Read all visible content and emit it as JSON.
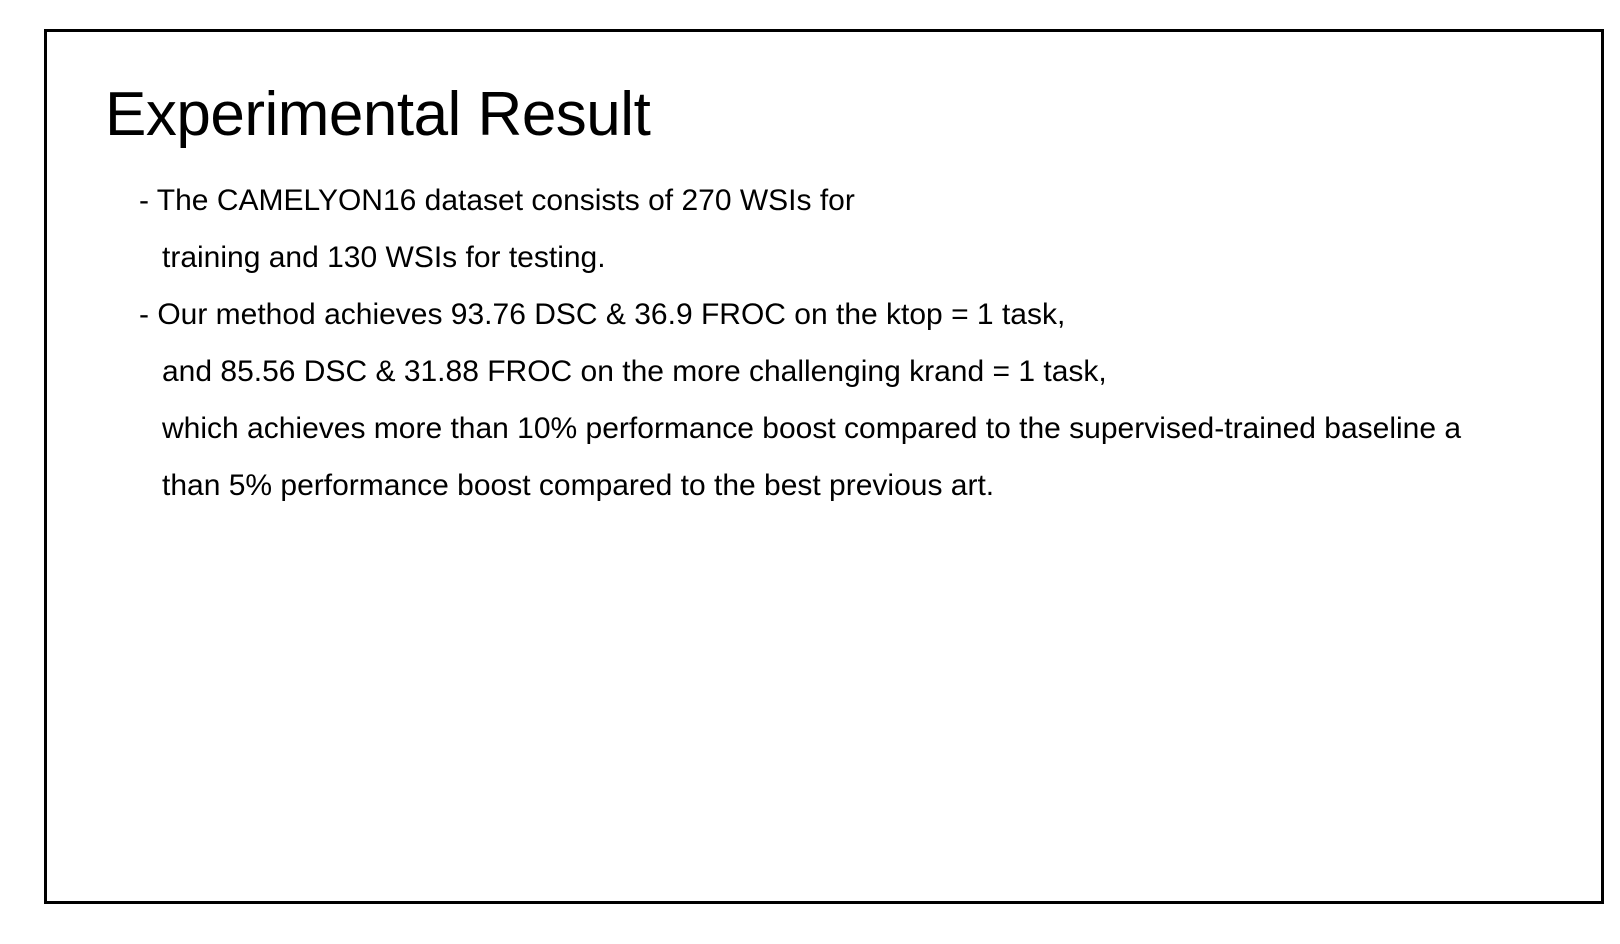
{
  "slide": {
    "title": "Experimental Result",
    "lines": [
      "- The CAMELYON16 dataset consists of 270 WSIs for",
      "training and 130 WSIs for testing.",
      "- Our method achieves 93.76 DSC & 36.9 FROC on the ktop = 1 task,",
      "and 85.56 DSC & 31.88 FROC on the more challenging krand = 1 task,",
      "which achieves more than 10% performance boost compared to the supervised-trained baseline a",
      "than 5% performance boost compared to the best previous art."
    ]
  }
}
